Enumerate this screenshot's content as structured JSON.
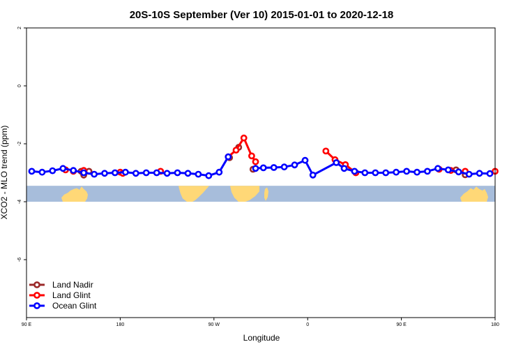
{
  "chart_data": {
    "type": "line",
    "title": "20S-10S September (Ver 10)   2015-01-01 to 2020-12-18",
    "xlabel": "Longitude",
    "ylabel": "XCO2 - MLO trend (ppm)",
    "xlim": [
      90,
      450
    ],
    "ylim": [
      -8,
      2
    ],
    "x_ticks": [
      {
        "value": 90,
        "label": "90 E"
      },
      {
        "value": 162,
        "label": "180"
      },
      {
        "value": 234,
        "label": "90 W"
      },
      {
        "value": 306,
        "label": "0"
      },
      {
        "value": 378,
        "label": "90 E"
      },
      {
        "value": 450,
        "label": "180"
      }
    ],
    "y_ticks": [
      {
        "value": 2,
        "label": "2"
      },
      {
        "value": 0,
        "label": "0"
      },
      {
        "value": -2,
        "label": "-2"
      },
      {
        "value": -4,
        "label": "-4"
      },
      {
        "value": -6,
        "label": "-6"
      }
    ],
    "map_band": {
      "ymin": -4.0,
      "ymax": -3.45,
      "ocean_color": "#A7BDDB",
      "land_color": "#FFD877"
    },
    "series": [
      {
        "name": "Land Nadir",
        "color": "#9B2A2A",
        "points": [
          [
            132,
            -2.95
          ],
          [
            138,
            -2.95
          ],
          [
            134,
            -3.08
          ],
          [
            246,
            -2.48
          ],
          [
            253,
            -2.12
          ],
          [
            264,
            -2.88
          ],
          [
            420,
            -2.9
          ],
          [
            427,
            -3.07
          ]
        ]
      },
      {
        "name": "Land Glint",
        "color": "#FF0000",
        "points": [
          [
            120,
            -2.9
          ],
          [
            126,
            -2.95
          ],
          [
            134,
            -2.92
          ],
          [
            162,
            -2.98
          ],
          [
            164,
            -3.02
          ],
          [
            193,
            -2.95
          ],
          [
            245,
            -2.45
          ],
          [
            251,
            -2.22
          ],
          [
            257,
            -1.8
          ],
          [
            263,
            -2.42
          ],
          [
            266,
            -2.62
          ],
          [
            320,
            -2.25
          ],
          [
            327,
            -2.55
          ],
          [
            335,
            -2.72
          ],
          [
            343,
            -3.0
          ],
          [
            407,
            -2.88
          ],
          [
            416,
            -2.92
          ],
          [
            427,
            -2.95
          ],
          [
            450,
            -2.95
          ]
        ],
        "lines": [
          [
            [
              245,
              -2.45
            ],
            [
              251,
              -2.22
            ],
            [
              257,
              -1.8
            ],
            [
              263,
              -2.42
            ],
            [
              266,
              -2.62
            ]
          ],
          [
            [
              320,
              -2.25
            ],
            [
              327,
              -2.55
            ],
            [
              335,
              -2.72
            ],
            [
              343,
              -3.0
            ]
          ]
        ]
      },
      {
        "name": "Ocean Glint",
        "color": "#0000FF",
        "points": [
          [
            94,
            -2.95
          ],
          [
            102,
            -2.98
          ],
          [
            110,
            -2.93
          ],
          [
            118,
            -2.85
          ],
          [
            126,
            -2.92
          ],
          [
            134,
            -3.0
          ],
          [
            142,
            -3.05
          ],
          [
            150,
            -3.02
          ],
          [
            158,
            -3.0
          ],
          [
            166,
            -2.98
          ],
          [
            174,
            -3.02
          ],
          [
            182,
            -3.0
          ],
          [
            190,
            -3.0
          ],
          [
            198,
            -3.02
          ],
          [
            206,
            -3.0
          ],
          [
            214,
            -3.02
          ],
          [
            222,
            -3.05
          ],
          [
            230,
            -3.1
          ],
          [
            238,
            -2.98
          ],
          [
            245,
            -2.45
          ],
          [
            266,
            -2.85
          ],
          [
            272,
            -2.83
          ],
          [
            280,
            -2.82
          ],
          [
            288,
            -2.8
          ],
          [
            296,
            -2.73
          ],
          [
            304,
            -2.57
          ],
          [
            310,
            -3.08
          ],
          [
            328,
            -2.65
          ],
          [
            334,
            -2.85
          ],
          [
            342,
            -2.95
          ],
          [
            350,
            -3.0
          ],
          [
            358,
            -3.0
          ],
          [
            366,
            -3.0
          ],
          [
            374,
            -2.98
          ],
          [
            382,
            -2.95
          ],
          [
            390,
            -2.98
          ],
          [
            398,
            -2.95
          ],
          [
            406,
            -2.85
          ],
          [
            414,
            -2.9
          ],
          [
            422,
            -2.97
          ],
          [
            430,
            -3.05
          ],
          [
            438,
            -3.02
          ],
          [
            446,
            -3.03
          ]
        ],
        "lines": [
          [
            [
              94,
              -2.95
            ],
            [
              102,
              -2.98
            ],
            [
              110,
              -2.93
            ],
            [
              118,
              -2.85
            ],
            [
              126,
              -2.92
            ],
            [
              134,
              -3.0
            ],
            [
              142,
              -3.05
            ],
            [
              150,
              -3.02
            ],
            [
              158,
              -3.0
            ],
            [
              166,
              -2.98
            ],
            [
              174,
              -3.02
            ],
            [
              182,
              -3.0
            ],
            [
              190,
              -3.0
            ],
            [
              198,
              -3.02
            ],
            [
              206,
              -3.0
            ],
            [
              214,
              -3.02
            ],
            [
              222,
              -3.05
            ],
            [
              230,
              -3.1
            ],
            [
              238,
              -2.98
            ],
            [
              245,
              -2.45
            ]
          ],
          [
            [
              266,
              -2.85
            ],
            [
              272,
              -2.83
            ],
            [
              280,
              -2.82
            ],
            [
              288,
              -2.8
            ],
            [
              296,
              -2.73
            ],
            [
              304,
              -2.57
            ],
            [
              310,
              -3.08
            ],
            [
              328,
              -2.65
            ],
            [
              334,
              -2.85
            ],
            [
              342,
              -2.95
            ],
            [
              350,
              -3.0
            ],
            [
              358,
              -3.0
            ],
            [
              366,
              -3.0
            ],
            [
              374,
              -2.98
            ],
            [
              382,
              -2.95
            ],
            [
              390,
              -2.98
            ],
            [
              398,
              -2.95
            ],
            [
              406,
              -2.85
            ],
            [
              414,
              -2.9
            ],
            [
              422,
              -2.97
            ],
            [
              430,
              -3.05
            ],
            [
              438,
              -3.02
            ],
            [
              446,
              -3.03
            ]
          ]
        ]
      }
    ],
    "legend": {
      "position": "bottom-left",
      "entries": [
        {
          "label": "Land Nadir",
          "color": "#9B2A2A"
        },
        {
          "label": "Land Glint",
          "color": "#FF0000"
        },
        {
          "label": "Ocean Glint",
          "color": "#0000FF"
        }
      ]
    }
  }
}
